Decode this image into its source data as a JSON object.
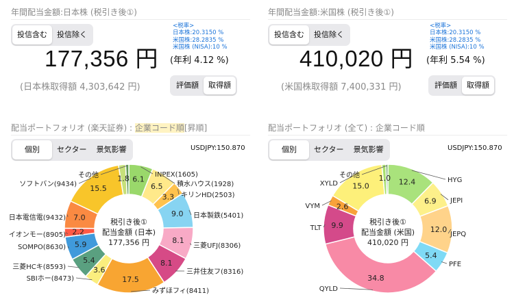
{
  "japan": {
    "title": "年間配当金額:日本株 (税引き後①)",
    "type_toggle": {
      "options": [
        "投信含む",
        "投信除く"
      ],
      "selected": 0
    },
    "tax_rates": {
      "header": "<税率>",
      "lines": [
        "日本株:20.3150 %",
        "米国株:28.2835 %",
        "米国株 (NISA):10 %"
      ]
    },
    "amount": "177,356 円",
    "yield": "(年利 4.12 %)",
    "acquisition": "(日本株取得額 4,303,642 円)",
    "basis_toggle": {
      "options": [
        "評価額",
        "取得額"
      ],
      "selected": 1
    },
    "portfolio": {
      "title_prefix": "配当ポートフォリオ (楽天証券) : ",
      "title_highlight": "企業コード順",
      "title_suffix": "[昇順]",
      "view_toggle": {
        "options": [
          "個別",
          "セクター",
          "景気影響"
        ],
        "selected": 0
      },
      "fx": "USDJPY:150.870",
      "center_lines": [
        "税引き後①",
        "配当金額 (日本)",
        "177,356 円"
      ]
    }
  },
  "us": {
    "title": "年間配当金額:米国株 (税引き後①)",
    "type_toggle": {
      "options": [
        "投信含む",
        "投信除く"
      ],
      "selected": 0
    },
    "tax_rates": {
      "header": "<税率>",
      "lines": [
        "日本株:20.3150 %",
        "米国株:28.2835 %",
        "米国株 (NISA):10 %"
      ]
    },
    "amount": "410,020 円",
    "yield": "(年利 5.54 %)",
    "acquisition": "(米国株取得額 7,400,331 円)",
    "basis_toggle": {
      "options": [
        "評価額",
        "取得額"
      ],
      "selected": 1
    },
    "portfolio": {
      "title": "配当ポートフォリオ (全て) : 企業コード順",
      "view_toggle": {
        "options": [
          "個別",
          "セクター",
          "景気影響"
        ],
        "selected": 0
      },
      "fx": "USDJPY:150.870",
      "center_lines": [
        "税引き後①",
        "配当金額 (米国)",
        "410,020 円"
      ]
    }
  },
  "chart_data": [
    {
      "type": "pie",
      "title": "配当ポートフォリオ (楽天証券)",
      "start": "12 o'clock, clockwise",
      "categories": [
        "INPEX(1605)",
        "積水ハウス(1928)",
        "キリンHD(2503)",
        "日本製鉄(5401)",
        "三菱UFJ(8306)",
        "三井住友フ(8316)",
        "みずほフィ(8411)",
        "SBIホー(8473)",
        "三菱HCキ(8593)",
        "SOMPO(8630)",
        "イオンモー(8905)",
        "日本電信電(9432)",
        "ソフトバン(9434)",
        "",
        "その他"
      ],
      "values": [
        6.1,
        6.5,
        3.3,
        9.0,
        8.1,
        8.1,
        17.5,
        3.6,
        5.4,
        5.9,
        2.2,
        7.0,
        15.5,
        1.8,
        0.8
      ],
      "value_labels": [
        "6.1",
        "6.5",
        "3.3",
        "9.0",
        "8.1",
        "8.1",
        "17.5",
        "3.6",
        "5.4",
        "5.9",
        "2.2",
        "7.0",
        "15.5",
        "1.8",
        ""
      ],
      "colors": [
        "#9ad86b",
        "#ffe98a",
        "#ffc24d",
        "#87d4f2",
        "#f8aac6",
        "#d64a86",
        "#f8a532",
        "#fbee7e",
        "#5aa080",
        "#409adb",
        "#ff5a46",
        "#fa8a42",
        "#f8c52a",
        "#c6e07a",
        "#5f9a55"
      ]
    },
    {
      "type": "pie",
      "title": "配当ポートフォリオ (全て)",
      "start": "12 o'clock, clockwise",
      "categories": [
        "HYG",
        "JEPI",
        "JEPQ",
        "PFE",
        "QYLD",
        "TLT",
        "VYM",
        "XYLD",
        "",
        "その他"
      ],
      "values": [
        12.4,
        6.9,
        12.0,
        5.4,
        34.8,
        9.9,
        2.6,
        15.0,
        1.0,
        0.5
      ],
      "value_labels": [
        "12.4",
        "6.9",
        "12.0",
        "5.4",
        "34.8",
        "9.9",
        "2.6",
        "15.0",
        "1.0",
        ""
      ],
      "colors": [
        "#a9e27c",
        "#fdf08a",
        "#ffd38a",
        "#7fdaf5",
        "#f88aa6",
        "#d44a8a",
        "#f8a23a",
        "#fdf07a",
        "#a8df6e",
        "#5f9a55"
      ]
    }
  ]
}
